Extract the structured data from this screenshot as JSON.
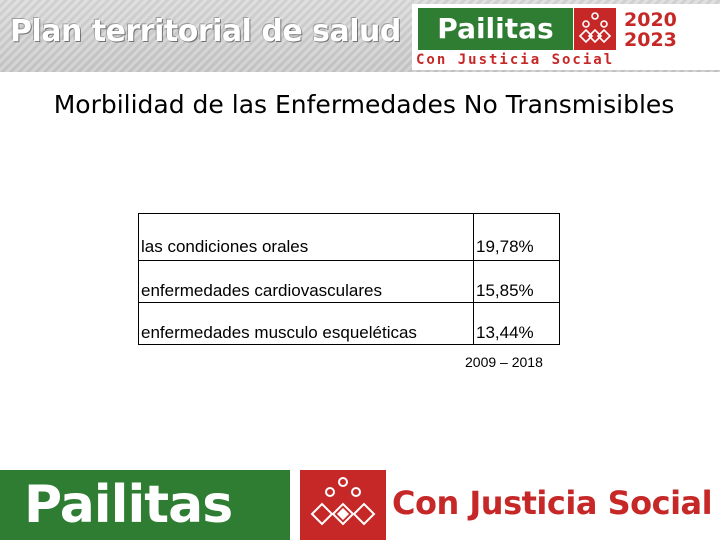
{
  "header": {
    "title": "Plan territorial de salud",
    "logo": {
      "name": "Pailitas",
      "years": [
        "2020",
        "2023"
      ],
      "tagline": "Con Justicia Social"
    }
  },
  "page_title": "Morbilidad de las Enfermedades No Transmisibles",
  "table": {
    "rows": [
      {
        "label": "las condiciones orales",
        "value": "19,78%"
      },
      {
        "label": "enfermedades cardiovasculares",
        "value": "15,85%"
      },
      {
        "label": "enfermedades musculo esqueléticas",
        "value": "13,44%"
      }
    ]
  },
  "period": "2009 – 2018",
  "footer": {
    "brand": "Pailitas",
    "tagline": "Con Justicia Social"
  },
  "colors": {
    "green": "#2e7d32",
    "red": "#c62828"
  },
  "icons": [
    "people-emblem-icon"
  ]
}
